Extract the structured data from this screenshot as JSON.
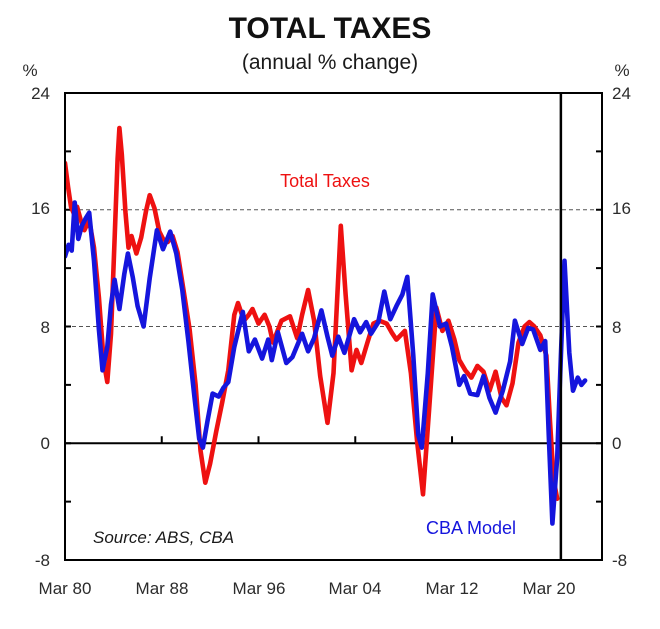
{
  "header": {
    "title": "TOTAL TAXES",
    "subtitle": "(annual % change)"
  },
  "axis": {
    "percent_left": "%",
    "percent_right": "%"
  },
  "source_note": "Source: ABS, CBA",
  "chart_data": {
    "type": "line",
    "title": "TOTAL TAXES",
    "subtitle": "(annual % change)",
    "ylabel_left": "%",
    "ylabel_right": "%",
    "x_range": [
      1980,
      2024.4
    ],
    "y_range": [
      -8,
      24
    ],
    "grid_dashed_at": [
      8,
      16
    ],
    "zero_line": 0,
    "y_tick_values": [
      24,
      16,
      8,
      0,
      -8
    ],
    "y_tick_labels": [
      "24",
      "16",
      "8",
      "0",
      "-8"
    ],
    "y_minor_tick_values": [
      -4,
      0,
      4,
      8,
      12,
      16,
      20
    ],
    "x_tick_years": [
      1980,
      1988,
      1996,
      2004,
      2012,
      2020
    ],
    "x_tick_labels": [
      "Mar 80",
      "Mar 88",
      "Mar 96",
      "Mar 04",
      "Mar 12",
      "Mar 20"
    ],
    "x_zero_axis_tick_years": [
      1988,
      1996,
      2004,
      2012,
      2020
    ],
    "divider_year": 2021.0,
    "legend_position": "inline-annotations",
    "annotations": [
      {
        "text": "Total Taxes",
        "color": "#ee1111"
      },
      {
        "text": "CBA Model",
        "color": "#1515dd"
      }
    ],
    "series": [
      {
        "name": "Total Taxes",
        "color": "#ee1111",
        "points": [
          [
            1980.0,
            19.2
          ],
          [
            1980.25,
            17.6
          ],
          [
            1980.5,
            16.2
          ],
          [
            1980.75,
            15.7
          ],
          [
            1981.0,
            16.2
          ],
          [
            1981.3,
            15.3
          ],
          [
            1981.6,
            14.6
          ],
          [
            1982.0,
            15.3
          ],
          [
            1982.4,
            13.4
          ],
          [
            1982.8,
            10.0
          ],
          [
            1983.2,
            5.6
          ],
          [
            1983.5,
            4.2
          ],
          [
            1983.8,
            7.5
          ],
          [
            1984.1,
            14.0
          ],
          [
            1984.35,
            19.5
          ],
          [
            1984.5,
            21.6
          ],
          [
            1984.7,
            19.8
          ],
          [
            1985.0,
            15.8
          ],
          [
            1985.25,
            13.4
          ],
          [
            1985.5,
            14.2
          ],
          [
            1985.9,
            13.0
          ],
          [
            1986.3,
            14.1
          ],
          [
            1986.7,
            15.9
          ],
          [
            1987.0,
            17.0
          ],
          [
            1987.4,
            16.1
          ],
          [
            1987.8,
            14.5
          ],
          [
            1988.1,
            14.0
          ],
          [
            1988.5,
            13.8
          ],
          [
            1988.9,
            14.2
          ],
          [
            1989.3,
            13.1
          ],
          [
            1989.8,
            10.5
          ],
          [
            1990.3,
            7.8
          ],
          [
            1990.8,
            4.0
          ],
          [
            1991.2,
            -0.5
          ],
          [
            1991.6,
            -2.7
          ],
          [
            1992.0,
            -1.4
          ],
          [
            1992.5,
            0.8
          ],
          [
            1993.0,
            2.8
          ],
          [
            1993.5,
            5.0
          ],
          [
            1994.0,
            8.8
          ],
          [
            1994.3,
            9.6
          ],
          [
            1994.8,
            8.4
          ],
          [
            1995.2,
            8.8
          ],
          [
            1995.5,
            9.2
          ],
          [
            1996.0,
            8.2
          ],
          [
            1996.5,
            8.8
          ],
          [
            1996.9,
            8.0
          ],
          [
            1997.2,
            6.9
          ],
          [
            1997.9,
            8.4
          ],
          [
            1998.6,
            8.7
          ],
          [
            1999.2,
            7.2
          ],
          [
            1999.6,
            8.8
          ],
          [
            2000.1,
            10.5
          ],
          [
            2000.6,
            8.4
          ],
          [
            2001.1,
            4.6
          ],
          [
            2001.7,
            1.4
          ],
          [
            2002.2,
            4.8
          ],
          [
            2002.5,
            9.8
          ],
          [
            2002.8,
            14.9
          ],
          [
            2003.2,
            10.2
          ],
          [
            2003.7,
            5.0
          ],
          [
            2004.1,
            6.4
          ],
          [
            2004.5,
            5.5
          ],
          [
            2005.0,
            6.9
          ],
          [
            2005.5,
            8.2
          ],
          [
            2006.0,
            8.4
          ],
          [
            2006.6,
            8.2
          ],
          [
            2007.0,
            7.6
          ],
          [
            2007.4,
            7.1
          ],
          [
            2008.1,
            7.7
          ],
          [
            2008.6,
            4.8
          ],
          [
            2009.1,
            0.2
          ],
          [
            2009.6,
            -3.5
          ],
          [
            2010.1,
            2.2
          ],
          [
            2010.7,
            9.3
          ],
          [
            2011.2,
            7.7
          ],
          [
            2011.7,
            8.4
          ],
          [
            2012.2,
            7.1
          ],
          [
            2012.6,
            5.7
          ],
          [
            2013.1,
            5.0
          ],
          [
            2013.6,
            4.5
          ],
          [
            2014.1,
            5.3
          ],
          [
            2014.6,
            4.9
          ],
          [
            2015.1,
            3.6
          ],
          [
            2015.6,
            4.9
          ],
          [
            2016.1,
            3.1
          ],
          [
            2016.5,
            2.6
          ],
          [
            2017.0,
            4.1
          ],
          [
            2017.5,
            6.9
          ],
          [
            2018.0,
            8.0
          ],
          [
            2018.4,
            8.3
          ],
          [
            2018.8,
            8.0
          ],
          [
            2019.3,
            7.4
          ],
          [
            2019.8,
            6.0
          ],
          [
            2020.1,
            1.5
          ],
          [
            2020.4,
            -2.5
          ],
          [
            2020.7,
            -3.8
          ]
        ]
      },
      {
        "name": "CBA Model",
        "color": "#1515dd",
        "points": [
          [
            1980.0,
            12.8
          ],
          [
            1980.3,
            13.6
          ],
          [
            1980.55,
            13.2
          ],
          [
            1980.8,
            16.5
          ],
          [
            1981.1,
            14.0
          ],
          [
            1981.4,
            14.9
          ],
          [
            1981.7,
            15.4
          ],
          [
            1982.0,
            15.8
          ],
          [
            1982.4,
            12.5
          ],
          [
            1982.8,
            7.8
          ],
          [
            1983.1,
            5.0
          ],
          [
            1983.5,
            6.6
          ],
          [
            1983.8,
            9.5
          ],
          [
            1984.1,
            11.2
          ],
          [
            1984.5,
            9.2
          ],
          [
            1984.9,
            11.6
          ],
          [
            1985.2,
            13.0
          ],
          [
            1985.6,
            11.4
          ],
          [
            1986.0,
            9.4
          ],
          [
            1986.5,
            8.0
          ],
          [
            1987.0,
            11.3
          ],
          [
            1987.6,
            14.6
          ],
          [
            1988.1,
            13.3
          ],
          [
            1988.7,
            14.5
          ],
          [
            1989.2,
            13.0
          ],
          [
            1989.7,
            10.5
          ],
          [
            1990.2,
            7.0
          ],
          [
            1990.7,
            3.2
          ],
          [
            1991.1,
            0.3
          ],
          [
            1991.4,
            -0.3
          ],
          [
            1991.8,
            1.6
          ],
          [
            1992.2,
            3.4
          ],
          [
            1992.7,
            3.2
          ],
          [
            1993.1,
            3.8
          ],
          [
            1993.5,
            4.2
          ],
          [
            1994.0,
            6.6
          ],
          [
            1994.7,
            9.0
          ],
          [
            1995.2,
            6.3
          ],
          [
            1995.7,
            7.1
          ],
          [
            1996.3,
            5.8
          ],
          [
            1996.8,
            7.1
          ],
          [
            1997.1,
            5.7
          ],
          [
            1997.6,
            7.6
          ],
          [
            1998.3,
            5.5
          ],
          [
            1998.8,
            5.9
          ],
          [
            1999.6,
            7.5
          ],
          [
            2000.1,
            6.3
          ],
          [
            2000.6,
            7.2
          ],
          [
            2001.2,
            9.1
          ],
          [
            2001.7,
            7.3
          ],
          [
            2002.1,
            6.0
          ],
          [
            2002.6,
            7.3
          ],
          [
            2003.1,
            6.2
          ],
          [
            2003.9,
            8.5
          ],
          [
            2004.4,
            7.6
          ],
          [
            2004.9,
            8.3
          ],
          [
            2005.3,
            7.5
          ],
          [
            2005.9,
            8.3
          ],
          [
            2006.4,
            10.4
          ],
          [
            2006.9,
            8.5
          ],
          [
            2007.4,
            9.4
          ],
          [
            2007.9,
            10.2
          ],
          [
            2008.3,
            11.4
          ],
          [
            2008.8,
            6.0
          ],
          [
            2009.2,
            0.6
          ],
          [
            2009.5,
            -0.3
          ],
          [
            2010.0,
            4.8
          ],
          [
            2010.4,
            10.2
          ],
          [
            2011.0,
            8.0
          ],
          [
            2011.5,
            8.2
          ],
          [
            2012.0,
            6.6
          ],
          [
            2012.6,
            4.0
          ],
          [
            2013.0,
            4.6
          ],
          [
            2013.5,
            3.4
          ],
          [
            2014.1,
            3.3
          ],
          [
            2014.6,
            4.6
          ],
          [
            2015.1,
            3.1
          ],
          [
            2015.6,
            2.1
          ],
          [
            2016.2,
            3.6
          ],
          [
            2016.8,
            5.6
          ],
          [
            2017.2,
            8.4
          ],
          [
            2017.8,
            6.8
          ],
          [
            2018.3,
            7.9
          ],
          [
            2018.7,
            7.8
          ],
          [
            2019.3,
            6.4
          ],
          [
            2019.7,
            7.0
          ],
          [
            2020.0,
            0.5
          ],
          [
            2020.3,
            -5.5
          ],
          [
            2020.7,
            -1.0
          ],
          [
            2021.0,
            6.0
          ],
          [
            2021.3,
            12.5
          ],
          [
            2021.7,
            6.2
          ],
          [
            2022.0,
            3.6
          ],
          [
            2022.4,
            4.5
          ],
          [
            2022.7,
            4.0
          ],
          [
            2023.0,
            4.3
          ]
        ]
      }
    ]
  }
}
